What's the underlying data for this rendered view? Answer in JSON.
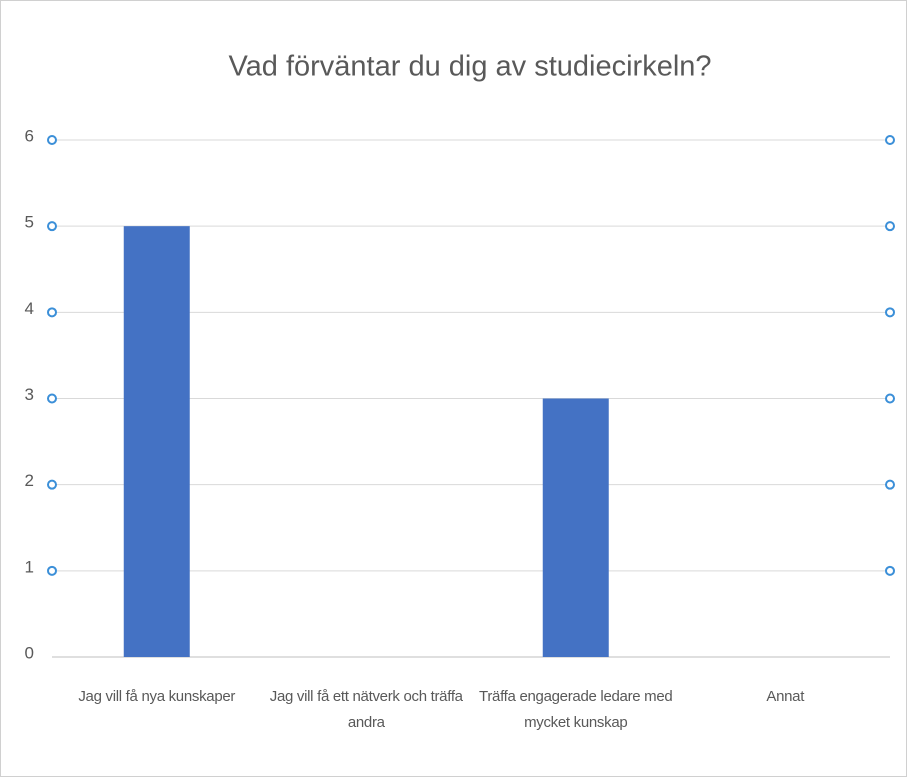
{
  "chart_data": {
    "type": "bar",
    "title": "Vad förväntar du dig av studiecirkeln?",
    "categories": [
      "Jag vill få nya kunskaper",
      "Jag vill få ett nätverk och träffa andra",
      "Träffa engagerade ledare med mycket kunskap",
      "Annat"
    ],
    "values": [
      5,
      0,
      3,
      0
    ],
    "color": "#4472c4",
    "ylim": [
      0,
      6
    ],
    "yticks": [
      0,
      1,
      2,
      3,
      4,
      5,
      6
    ],
    "grid": true
  }
}
